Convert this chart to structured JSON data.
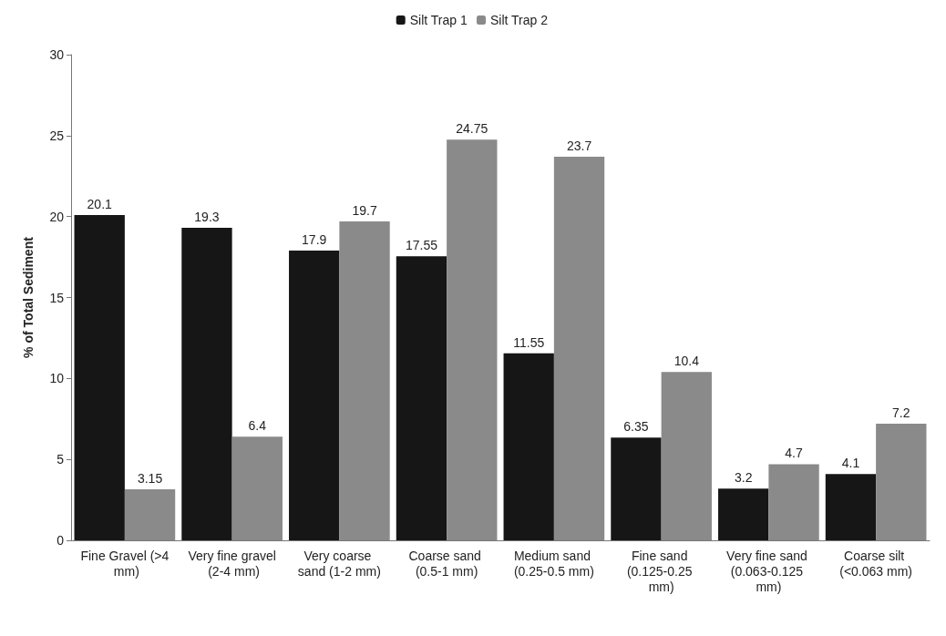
{
  "chart_data": {
    "type": "bar",
    "ylabel": "% of Total Sediment",
    "categories": [
      "Fine Gravel (>4 mm)",
      "Very fine gravel (2-4 mm)",
      "Very coarse sand (1-2 mm)",
      "Coarse sand (0.5-1 mm)",
      "Medium sand (0.25-0.5 mm)",
      "Fine sand (0.125-0.25 mm)",
      "Very fine sand (0.063-0.125 mm)",
      "Coarse silt (<0.063 mm)"
    ],
    "series": [
      {
        "name": "Silt Trap 1",
        "color": "#161616",
        "values": [
          20.1,
          19.3,
          17.9,
          17.55,
          11.55,
          6.35,
          3.2,
          4.1
        ]
      },
      {
        "name": "Silt Trap 2",
        "color": "#8a8a8a",
        "values": [
          3.15,
          6.4,
          19.7,
          24.75,
          23.7,
          10.4,
          4.7,
          7.2
        ]
      }
    ],
    "ylim": [
      0,
      30
    ],
    "yticks": [
      0,
      5,
      10,
      15,
      20,
      25,
      30
    ],
    "grid": false,
    "legend": "top",
    "data_labels": true
  }
}
